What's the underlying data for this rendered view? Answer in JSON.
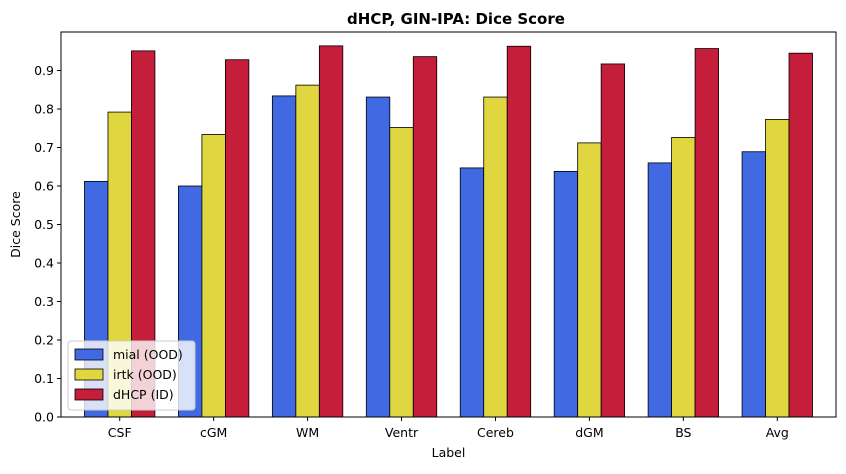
{
  "chart_data": {
    "type": "bar",
    "title": "dHCP, GIN-IPA: Dice Score",
    "xlabel": "Label",
    "ylabel": "Dice Score",
    "ylim": [
      0,
      1.0
    ],
    "yticks": [
      0.0,
      0.1,
      0.2,
      0.3,
      0.4,
      0.5,
      0.6,
      0.7,
      0.8,
      0.9
    ],
    "ytick_labels": [
      "0.0",
      "0.1",
      "0.2",
      "0.3",
      "0.4",
      "0.5",
      "0.6",
      "0.7",
      "0.8",
      "0.9"
    ],
    "categories": [
      "CSF",
      "cGM",
      "WM",
      "Ventr",
      "Cereb",
      "dGM",
      "BS",
      "Avg"
    ],
    "series": [
      {
        "name": "mial (OOD)",
        "color": "#4169e1",
        "values": [
          0.612,
          0.6,
          0.834,
          0.831,
          0.647,
          0.638,
          0.66,
          0.689
        ]
      },
      {
        "name": "irtk (OOD)",
        "color": "#e0d640",
        "values": [
          0.792,
          0.734,
          0.862,
          0.752,
          0.831,
          0.712,
          0.726,
          0.773
        ]
      },
      {
        "name": "dHCP (ID)",
        "color": "#c41e3a",
        "values": [
          0.951,
          0.928,
          0.964,
          0.936,
          0.963,
          0.917,
          0.957,
          0.945
        ]
      }
    ],
    "legend_position": "lower-left",
    "grid": false
  }
}
